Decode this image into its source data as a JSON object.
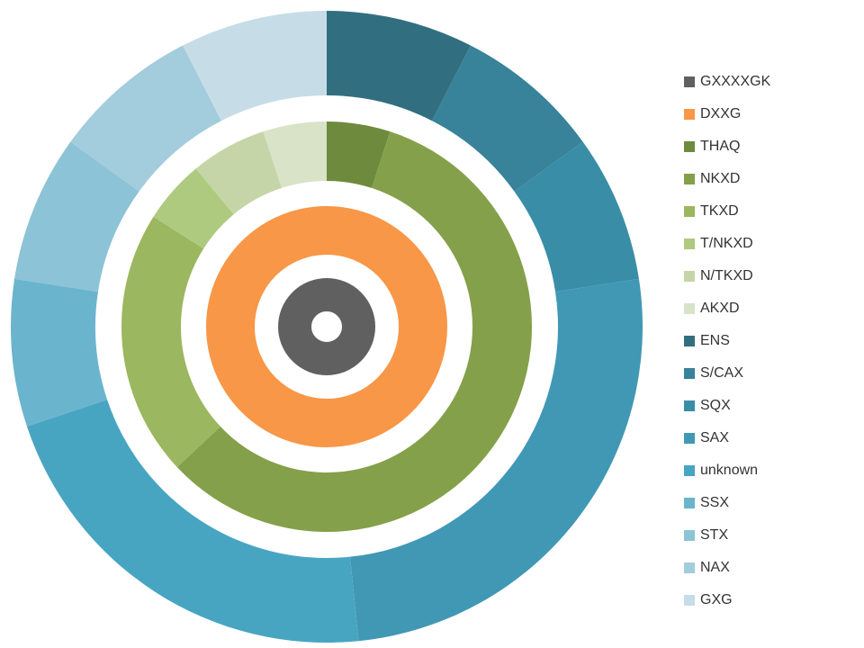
{
  "chart_data": {
    "type": "pie",
    "subtype": "multi-level donut",
    "title": "",
    "legend_position": "right",
    "rings": [
      {
        "name": "",
        "slices": [
          {
            "label": "GXXXXGK",
            "value": 1,
            "color": "#606060"
          }
        ]
      },
      {
        "name": "",
        "slices": [
          {
            "label": "DXXG",
            "value": 1,
            "color": "#F79747"
          }
        ]
      },
      {
        "name": "",
        "slices": [
          {
            "label": "THAQ",
            "value": 5,
            "color": "#6E8B3D"
          },
          {
            "label": "NKXD",
            "value": 58,
            "color": "#85A04A"
          },
          {
            "label": "TKXD",
            "value": 21,
            "color": "#9BB75F"
          },
          {
            "label": "T/NKXD",
            "value": 5,
            "color": "#AECA7E"
          },
          {
            "label": "N/TKXD",
            "value": 6,
            "color": "#C6D5A8"
          },
          {
            "label": "AKXD",
            "value": 5,
            "color": "#D8E3C7"
          }
        ]
      },
      {
        "name": "",
        "slices": [
          {
            "label": "ENS",
            "value": 7,
            "color": "#316F80"
          },
          {
            "label": "S/CAX",
            "value": 7,
            "color": "#38829A"
          },
          {
            "label": "SQX",
            "value": 7,
            "color": "#3A8DA6"
          },
          {
            "label": "SAX",
            "value": 24,
            "color": "#4198B4"
          },
          {
            "label": "unknown",
            "value": 20,
            "color": "#48A5C2"
          },
          {
            "label": "SSX",
            "value": 7,
            "color": "#6BB4CD"
          },
          {
            "label": "STX",
            "value": 7,
            "color": "#8CC3D6"
          },
          {
            "label": "NAX",
            "value": 7,
            "color": "#A3CCDD"
          },
          {
            "label": "GXG",
            "value": 7,
            "color": "#C6DDE8"
          }
        ]
      }
    ],
    "legend": [
      {
        "label": "GXXXXGK",
        "color": "#606060"
      },
      {
        "label": "DXXG",
        "color": "#F79747"
      },
      {
        "label": "THAQ",
        "color": "#6E8B3D"
      },
      {
        "label": "NKXD",
        "color": "#85A04A"
      },
      {
        "label": "TKXD",
        "color": "#9BB75F"
      },
      {
        "label": "T/NKXD",
        "color": "#AECA7E"
      },
      {
        "label": "N/TKXD",
        "color": "#C6D5A8"
      },
      {
        "label": "AKXD",
        "color": "#D8E3C7"
      },
      {
        "label": "ENS",
        "color": "#316F80"
      },
      {
        "label": "S/CAX",
        "color": "#38829A"
      },
      {
        "label": "SQX",
        "color": "#3A8DA6"
      },
      {
        "label": "SAX",
        "color": "#4198B4"
      },
      {
        "label": "unknown",
        "color": "#48A5C2"
      },
      {
        "label": "SSX",
        "color": "#6BB4CD"
      },
      {
        "label": "STX",
        "color": "#8CC3D6"
      },
      {
        "label": "NAX",
        "color": "#A3CCDD"
      },
      {
        "label": "GXG",
        "color": "#C6DDE8"
      }
    ]
  }
}
